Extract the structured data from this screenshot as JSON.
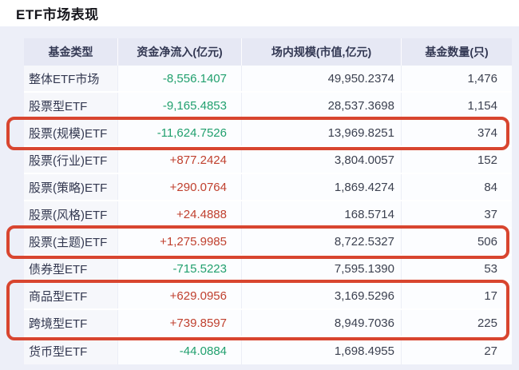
{
  "page": {
    "title": "ETF市场表现"
  },
  "colors": {
    "positive_inflow": "#c0402e",
    "negative_inflow": "#21a06e",
    "highlight_box": "#d8452f",
    "page_bg": "#edeff8",
    "header_bg": "#e6e8f4",
    "header_text": "#333853",
    "fund_type_text": "#333850",
    "number_text": "#3c4150"
  },
  "table": {
    "headers": [
      "基金类型",
      "资金净流入(亿元)",
      "场内规模(市值,亿元)",
      "基金数量(只)"
    ],
    "rows": [
      {
        "fund_type": "整体ETF市场",
        "net_inflow": "-8,556.1407",
        "market_value": "49,950.2374",
        "fund_count": "1,476",
        "highlighted": false
      },
      {
        "fund_type": "股票型ETF",
        "net_inflow": "-9,165.4853",
        "market_value": "28,537.3698",
        "fund_count": "1,154",
        "highlighted": false
      },
      {
        "fund_type": "股票(规模)ETF",
        "net_inflow": "-11,624.7526",
        "market_value": "13,969.8251",
        "fund_count": "374",
        "highlighted": true
      },
      {
        "fund_type": "股票(行业)ETF",
        "net_inflow": "+877.2424",
        "market_value": "3,804.0057",
        "fund_count": "152",
        "highlighted": false
      },
      {
        "fund_type": "股票(策略)ETF",
        "net_inflow": "+290.0764",
        "market_value": "1,869.4274",
        "fund_count": "84",
        "highlighted": false
      },
      {
        "fund_type": "股票(风格)ETF",
        "net_inflow": "+24.4888",
        "market_value": "168.5714",
        "fund_count": "37",
        "highlighted": false
      },
      {
        "fund_type": "股票(主题)ETF",
        "net_inflow": "+1,275.9985",
        "market_value": "8,722.5327",
        "fund_count": "506",
        "highlighted": true
      },
      {
        "fund_type": "债券型ETF",
        "net_inflow": "-715.5223",
        "market_value": "7,595.1390",
        "fund_count": "53",
        "highlighted": false
      },
      {
        "fund_type": "商品型ETF",
        "net_inflow": "+629.0956",
        "market_value": "3,169.5296",
        "fund_count": "17",
        "highlighted": true
      },
      {
        "fund_type": "跨境型ETF",
        "net_inflow": "+739.8597",
        "market_value": "8,949.7036",
        "fund_count": "225",
        "highlighted": true
      },
      {
        "fund_type": "货币型ETF",
        "net_inflow": "-44.0884",
        "market_value": "1,698.4955",
        "fund_count": "27",
        "highlighted": false
      }
    ]
  },
  "chart_data": {
    "type": "table",
    "title": "ETF市场表现",
    "columns": [
      "基金类型",
      "资金净流入(亿元)",
      "场内规模(市值,亿元)",
      "基金数量(只)"
    ],
    "rows": [
      [
        "整体ETF市场",
        -8556.1407,
        49950.2374,
        1476
      ],
      [
        "股票型ETF",
        -9165.4853,
        28537.3698,
        1154
      ],
      [
        "股票(规模)ETF",
        -11624.7526,
        13969.8251,
        374
      ],
      [
        "股票(行业)ETF",
        877.2424,
        3804.0057,
        152
      ],
      [
        "股票(策略)ETF",
        290.0764,
        1869.4274,
        84
      ],
      [
        "股票(风格)ETF",
        24.4888,
        168.5714,
        37
      ],
      [
        "股票(主题)ETF",
        1275.9985,
        8722.5327,
        506
      ],
      [
        "债券型ETF",
        -715.5223,
        7595.139,
        53
      ],
      [
        "商品型ETF",
        629.0956,
        3169.5296,
        17
      ],
      [
        "跨境型ETF",
        739.8597,
        8949.7036,
        225
      ],
      [
        "货币型ETF",
        -44.0884,
        1698.4955,
        27
      ]
    ],
    "annotations": {
      "highlighted_row_groups": [
        [
          "股票(规模)ETF"
        ],
        [
          "股票(主题)ETF"
        ],
        [
          "商品型ETF",
          "跨境型ETF"
        ]
      ],
      "highlight_style": "red rounded rectangle outline"
    },
    "value_color_convention": "positive inflow = red, negative inflow = green"
  }
}
